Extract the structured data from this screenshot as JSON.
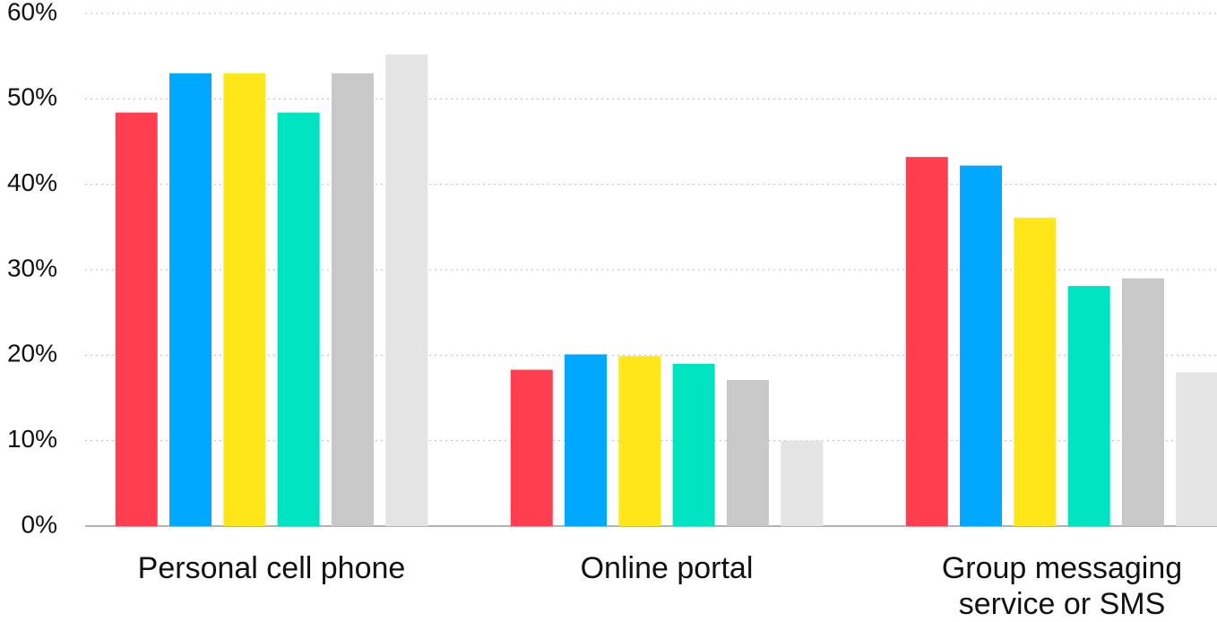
{
  "chart_data": {
    "type": "bar",
    "categories": [
      "Personal cell phone",
      "Online portal",
      "Group messaging service or SMS"
    ],
    "series": [
      {
        "color": "#ff3e4f",
        "values": [
          48.4,
          18.3,
          43.2
        ]
      },
      {
        "color": "#00a9ff",
        "values": [
          53,
          20.1,
          42.2
        ]
      },
      {
        "color": "#ffe619",
        "values": [
          53,
          19.9,
          36.1
        ]
      },
      {
        "color": "#00e3c0",
        "values": [
          48.4,
          19,
          28.1
        ]
      },
      {
        "color": "#c8c8c8",
        "values": [
          53,
          17.1,
          29
        ]
      },
      {
        "color": "#e4e4e4",
        "values": [
          55.2,
          10,
          18
        ]
      }
    ],
    "ylim": [
      0,
      60
    ],
    "yticks": [
      {
        "value": 0,
        "label": "0%"
      },
      {
        "value": 10,
        "label": "10%"
      },
      {
        "value": 20,
        "label": "20%"
      },
      {
        "value": 30,
        "label": "30%"
      },
      {
        "value": 40,
        "label": "40%"
      },
      {
        "value": 50,
        "label": "50%"
      },
      {
        "value": 60,
        "label": "60%"
      }
    ],
    "grid": true
  }
}
